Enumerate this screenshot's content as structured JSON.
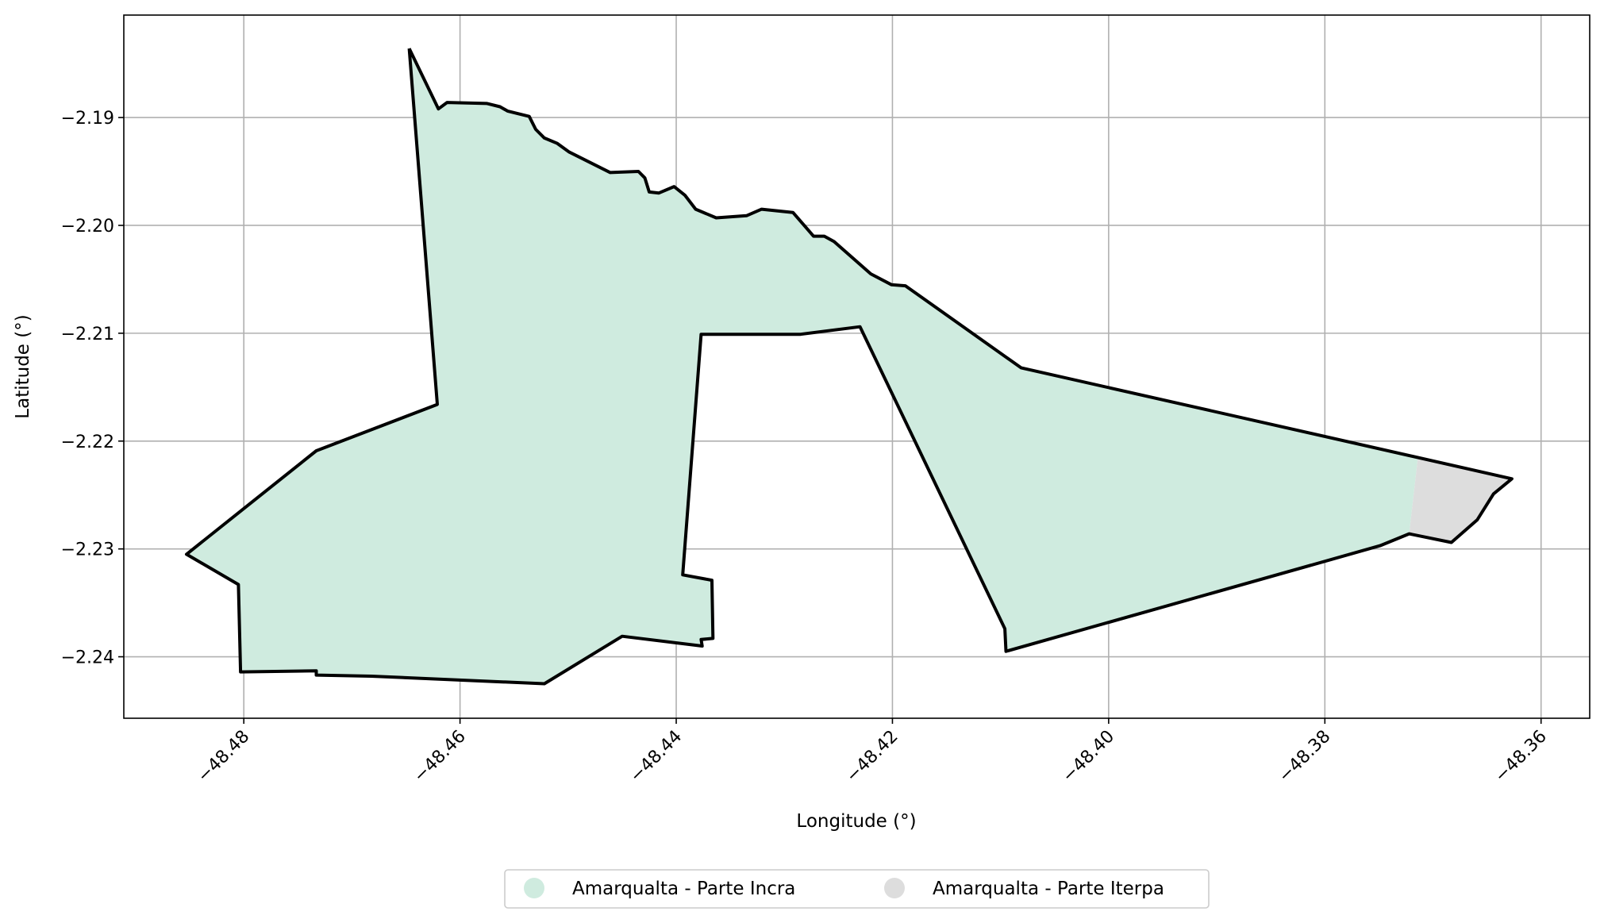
{
  "chart_data": {
    "type": "map",
    "title": "",
    "xlabel": "Longitude (°)",
    "ylabel": "Latitude (°)",
    "xlim": [
      -48.4911,
      -48.3555
    ],
    "ylim": [
      -2.2457,
      -2.1805
    ],
    "grid": true,
    "legend_position": "bottom-center",
    "x_ticks": [
      -48.48,
      -48.46,
      -48.44,
      -48.42,
      -48.4,
      -48.38,
      -48.36
    ],
    "x_tick_labels": [
      "−48.48",
      "−48.46",
      "−48.44",
      "−48.42",
      "−48.40",
      "−48.38",
      "−48.36"
    ],
    "y_ticks": [
      -2.19,
      -2.2,
      -2.21,
      -2.22,
      -2.23,
      -2.24
    ],
    "y_tick_labels": [
      "−2.19",
      "−2.20",
      "−2.21",
      "−2.22",
      "−2.23",
      "−2.24"
    ],
    "colors": {
      "incra_fill": "#cfebdf",
      "iterpa_fill": "#dddddd",
      "boundary": "#000000",
      "grid": "#b0b0b0"
    },
    "layers": [
      {
        "name": "Amarqualta - Parte Incra",
        "fill": "#cfebdf",
        "coordinates": [
          [
            -48.4647,
            -2.1836
          ],
          [
            -48.462,
            -2.1892
          ],
          [
            -48.4612,
            -2.1886
          ],
          [
            -48.4575,
            -2.1887
          ],
          [
            -48.4563,
            -2.189
          ],
          [
            -48.4556,
            -2.1894
          ],
          [
            -48.4536,
            -2.1899
          ],
          [
            -48.453,
            -2.1911
          ],
          [
            -48.4522,
            -2.1919
          ],
          [
            -48.451,
            -2.1924
          ],
          [
            -48.4499,
            -2.1932
          ],
          [
            -48.4461,
            -2.1951
          ],
          [
            -48.4435,
            -2.195
          ],
          [
            -48.4429,
            -2.1956
          ],
          [
            -48.4425,
            -2.1969
          ],
          [
            -48.4416,
            -2.197
          ],
          [
            -48.4402,
            -2.1964
          ],
          [
            -48.4392,
            -2.1972
          ],
          [
            -48.4382,
            -2.1985
          ],
          [
            -48.4363,
            -2.1993
          ],
          [
            -48.4335,
            -2.1991
          ],
          [
            -48.4321,
            -2.1985
          ],
          [
            -48.4292,
            -2.1988
          ],
          [
            -48.4273,
            -2.201
          ],
          [
            -48.4263,
            -2.201
          ],
          [
            -48.4254,
            -2.2015
          ],
          [
            -48.422,
            -2.2045
          ],
          [
            -48.4201,
            -2.2055
          ],
          [
            -48.4188,
            -2.2056
          ],
          [
            -48.4081,
            -2.2132
          ],
          [
            -48.3714,
            -2.2216
          ],
          [
            -48.3722,
            -2.2286
          ],
          [
            -48.3749,
            -2.2297
          ],
          [
            -48.4095,
            -2.2395
          ],
          [
            -48.4096,
            -2.2374
          ],
          [
            -48.423,
            -2.2094
          ],
          [
            -48.4285,
            -2.2101
          ],
          [
            -48.4377,
            -2.2101
          ],
          [
            -48.4394,
            -2.2324
          ],
          [
            -48.4367,
            -2.2329
          ],
          [
            -48.4366,
            -2.2383
          ],
          [
            -48.4377,
            -2.2384
          ],
          [
            -48.4376,
            -2.239
          ],
          [
            -48.445,
            -2.2381
          ],
          [
            -48.4522,
            -2.2425
          ],
          [
            -48.4682,
            -2.2418
          ],
          [
            -48.4733,
            -2.2417
          ],
          [
            -48.4733,
            -2.2413
          ],
          [
            -48.4803,
            -2.2414
          ],
          [
            -48.4805,
            -2.2333
          ],
          [
            -48.4853,
            -2.2305
          ],
          [
            -48.4733,
            -2.2209
          ],
          [
            -48.4621,
            -2.2166
          ],
          [
            -48.4647,
            -2.1836
          ]
        ]
      },
      {
        "name": "Amarqualta - Parte Iterpa",
        "fill": "#dddddd",
        "coordinates": [
          [
            -48.3714,
            -2.2216
          ],
          [
            -48.3627,
            -2.2235
          ],
          [
            -48.3644,
            -2.2249
          ],
          [
            -48.3659,
            -2.2273
          ],
          [
            -48.3683,
            -2.2294
          ],
          [
            -48.3722,
            -2.2286
          ]
        ]
      }
    ],
    "boundary": [
      [
        -48.4647,
        -2.1836
      ],
      [
        -48.462,
        -2.1892
      ],
      [
        -48.4612,
        -2.1886
      ],
      [
        -48.4575,
        -2.1887
      ],
      [
        -48.4563,
        -2.189
      ],
      [
        -48.4556,
        -2.1894
      ],
      [
        -48.4536,
        -2.1899
      ],
      [
        -48.453,
        -2.1911
      ],
      [
        -48.4522,
        -2.1919
      ],
      [
        -48.451,
        -2.1924
      ],
      [
        -48.4499,
        -2.1932
      ],
      [
        -48.4461,
        -2.1951
      ],
      [
        -48.4435,
        -2.195
      ],
      [
        -48.4429,
        -2.1956
      ],
      [
        -48.4425,
        -2.1969
      ],
      [
        -48.4416,
        -2.197
      ],
      [
        -48.4402,
        -2.1964
      ],
      [
        -48.4392,
        -2.1972
      ],
      [
        -48.4382,
        -2.1985
      ],
      [
        -48.4363,
        -2.1993
      ],
      [
        -48.4335,
        -2.1991
      ],
      [
        -48.4321,
        -2.1985
      ],
      [
        -48.4292,
        -2.1988
      ],
      [
        -48.4273,
        -2.201
      ],
      [
        -48.4263,
        -2.201
      ],
      [
        -48.4254,
        -2.2015
      ],
      [
        -48.422,
        -2.2045
      ],
      [
        -48.4201,
        -2.2055
      ],
      [
        -48.4188,
        -2.2056
      ],
      [
        -48.4081,
        -2.2132
      ],
      [
        -48.3627,
        -2.2235
      ],
      [
        -48.3644,
        -2.2249
      ],
      [
        -48.3659,
        -2.2273
      ],
      [
        -48.3683,
        -2.2294
      ],
      [
        -48.3722,
        -2.2286
      ],
      [
        -48.3749,
        -2.2297
      ],
      [
        -48.4095,
        -2.2395
      ],
      [
        -48.4096,
        -2.2374
      ],
      [
        -48.423,
        -2.2094
      ],
      [
        -48.4285,
        -2.2101
      ],
      [
        -48.4377,
        -2.2101
      ],
      [
        -48.4394,
        -2.2324
      ],
      [
        -48.4367,
        -2.2329
      ],
      [
        -48.4366,
        -2.2383
      ],
      [
        -48.4377,
        -2.2384
      ],
      [
        -48.4376,
        -2.239
      ],
      [
        -48.445,
        -2.2381
      ],
      [
        -48.4522,
        -2.2425
      ],
      [
        -48.4682,
        -2.2418
      ],
      [
        -48.4733,
        -2.2417
      ],
      [
        -48.4733,
        -2.2413
      ],
      [
        -48.4803,
        -2.2414
      ],
      [
        -48.4805,
        -2.2333
      ],
      [
        -48.4853,
        -2.2305
      ],
      [
        -48.4733,
        -2.2209
      ],
      [
        -48.4621,
        -2.2166
      ],
      [
        -48.4647,
        -2.1836
      ]
    ]
  },
  "legend": {
    "items": [
      {
        "label": "Amarqualta - Parte Incra",
        "color": "#cfebdf"
      },
      {
        "label": "Amarqualta - Parte Iterpa",
        "color": "#dddddd"
      }
    ]
  }
}
